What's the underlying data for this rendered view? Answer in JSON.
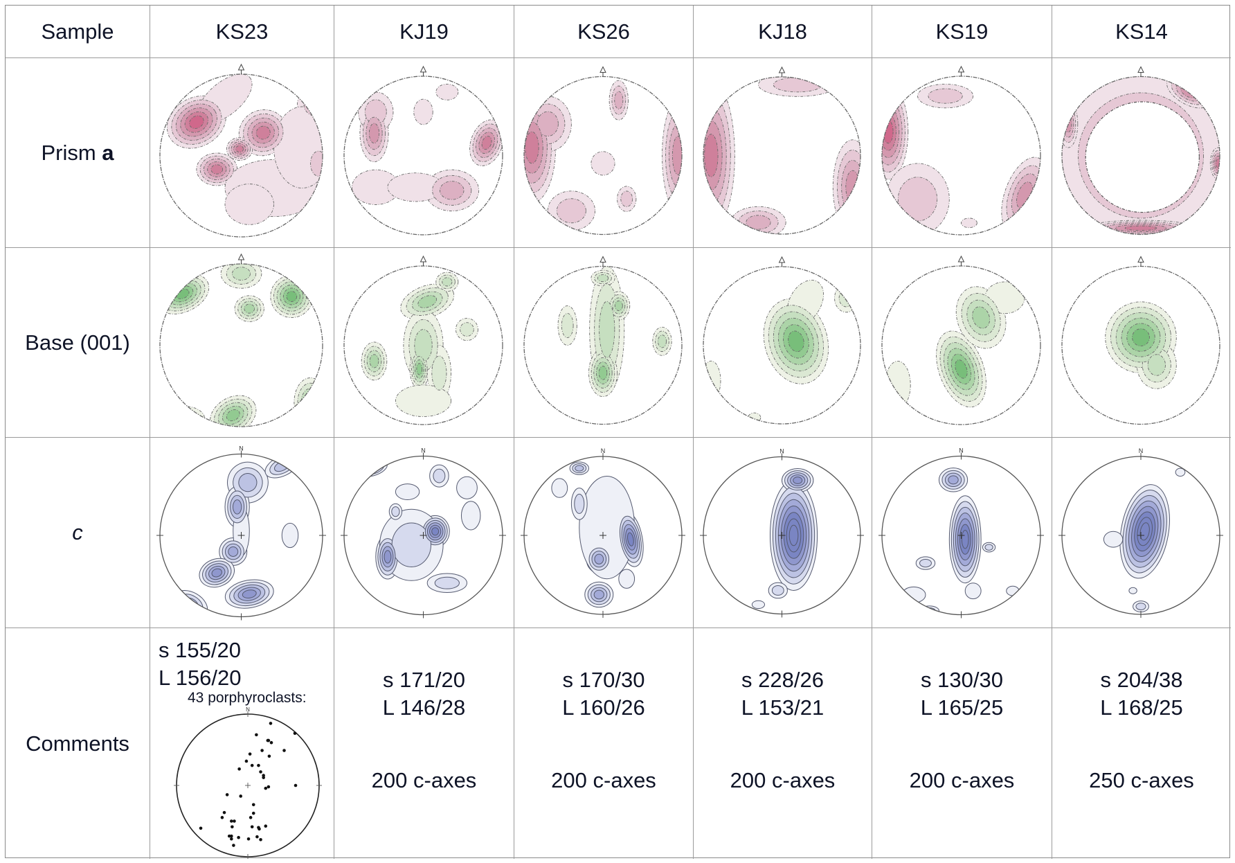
{
  "table": {
    "corner_label": "Sample",
    "samples": [
      "KS23",
      "KJ19",
      "KS26",
      "KJ18",
      "KS19",
      "KS14"
    ],
    "rows": [
      {
        "label_plain": "Prism ",
        "label_bold": "a",
        "kind": "prism",
        "north_marker": "triangle"
      },
      {
        "label_plain": "Base (001)",
        "kind": "base",
        "north_marker": "triangle"
      },
      {
        "label_italic": "c",
        "kind": "caxis",
        "north_marker": "N"
      },
      {
        "label_plain": "Comments",
        "kind": "comments"
      }
    ]
  },
  "colors": {
    "prism": [
      "#f0e1e8",
      "#e6c8d5",
      "#dcb0c2",
      "#d498ae",
      "#cf809b",
      "#d0688b"
    ],
    "base": [
      "#eef2e6",
      "#dbe8d3",
      "#c6dfc0",
      "#acd4a8",
      "#92ca91",
      "#78be7a"
    ],
    "caxis": [
      "#eef0f7",
      "#d6daee",
      "#bcc2e3",
      "#a3aad8",
      "#8f97cd",
      "#7a85c3"
    ],
    "line": "#555555",
    "text": "#0e1326"
  },
  "comments": [
    {
      "s": "s 155/20",
      "L": "L 156/20",
      "extra": "43 porphyroclasts:"
    },
    {
      "s": "s 171/20",
      "L": "L 146/28",
      "count": "200 c-axes"
    },
    {
      "s": "s 170/30",
      "L": "L 160/26",
      "count": "200 c-axes"
    },
    {
      "s": "s 228/26",
      "L": "L 153/21",
      "count": "200 c-axes"
    },
    {
      "s": "s 130/30",
      "L": "L 165/25",
      "count": "200 c-axes"
    },
    {
      "s": "s 204/38",
      "L": "L 168/25",
      "count": "250 c-axes"
    }
  ],
  "porphyroclasts": {
    "north_label": "N",
    "points": [
      [
        0.32,
        -0.87
      ],
      [
        0.66,
        -0.73
      ],
      [
        0.12,
        -0.71
      ],
      [
        0.28,
        -0.63
      ],
      [
        0.33,
        -0.6
      ],
      [
        0.29,
        -0.63
      ],
      [
        0.2,
        -0.49
      ],
      [
        0.51,
        -0.49
      ],
      [
        0.3,
        -0.41
      ],
      [
        0.03,
        -0.44
      ],
      [
        -0.02,
        -0.34
      ],
      [
        0.06,
        -0.28
      ],
      [
        0.15,
        -0.28
      ],
      [
        -0.12,
        -0.23
      ],
      [
        0.18,
        -0.19
      ],
      [
        0.22,
        -0.14
      ],
      [
        0.22,
        -0.11
      ],
      [
        0.67,
        0.0
      ],
      [
        0.29,
        0.02
      ],
      [
        0.25,
        0.04
      ],
      [
        -0.29,
        0.13
      ],
      [
        -0.1,
        0.15
      ],
      [
        0.08,
        0.27
      ],
      [
        0.08,
        0.39
      ],
      [
        -0.33,
        0.38
      ],
      [
        -0.36,
        0.45
      ],
      [
        0.04,
        0.45
      ],
      [
        -0.23,
        0.5
      ],
      [
        -0.19,
        0.5
      ],
      [
        -0.22,
        0.58
      ],
      [
        0.06,
        0.58
      ],
      [
        0.15,
        0.59
      ],
      [
        0.16,
        0.61
      ],
      [
        0.25,
        0.57
      ],
      [
        -0.66,
        0.6
      ],
      [
        -0.26,
        0.71
      ],
      [
        -0.23,
        0.71
      ],
      [
        -0.13,
        0.73
      ],
      [
        -0.23,
        0.75
      ],
      [
        0.01,
        0.75
      ],
      [
        0.13,
        0.72
      ],
      [
        0.18,
        0.76
      ],
      [
        -0.2,
        0.84
      ]
    ]
  },
  "fabrics": {
    "prism": [
      [
        [
          -0.55,
          -0.41,
          0.38,
          0.3,
          -30,
          6
        ],
        [
          0.27,
          -0.28,
          0.3,
          0.28,
          -20,
          5
        ],
        [
          -0.3,
          0.17,
          0.25,
          0.2,
          0,
          5
        ],
        [
          -0.02,
          -0.08,
          0.16,
          0.14,
          0,
          5
        ],
        [
          0.9,
          -0.6,
          0.22,
          0.18,
          30,
          2
        ],
        [
          0.95,
          0.1,
          0.16,
          0.25,
          0,
          2
        ],
        [
          0.4,
          0.4,
          0.6,
          0.35,
          0,
          1
        ],
        [
          0.1,
          0.6,
          0.3,
          0.25,
          0,
          1
        ],
        [
          -0.2,
          -0.7,
          0.4,
          0.2,
          -40,
          1
        ],
        [
          0.75,
          -0.1,
          0.35,
          0.5,
          0,
          1
        ]
      ],
      [
        [
          -0.62,
          -0.28,
          0.18,
          0.36,
          0,
          4
        ],
        [
          0.8,
          -0.16,
          0.2,
          0.3,
          20,
          5
        ],
        [
          0.36,
          0.44,
          0.34,
          0.26,
          0,
          3
        ],
        [
          -0.6,
          0.4,
          0.3,
          0.22,
          0,
          1
        ],
        [
          -0.1,
          0.4,
          0.35,
          0.18,
          0,
          1
        ],
        [
          0.0,
          -0.55,
          0.12,
          0.16,
          0,
          1
        ],
        [
          0.3,
          -0.8,
          0.14,
          0.1,
          0,
          1
        ],
        [
          -0.6,
          -0.55,
          0.22,
          0.25,
          0,
          2
        ]
      ],
      [
        [
          -0.9,
          -0.1,
          0.3,
          0.7,
          0,
          5
        ],
        [
          0.95,
          0.0,
          0.2,
          0.7,
          0,
          4
        ],
        [
          0.2,
          -0.7,
          0.12,
          0.25,
          0,
          3
        ],
        [
          -0.4,
          0.7,
          0.3,
          0.25,
          0,
          2
        ],
        [
          0.3,
          0.55,
          0.12,
          0.16,
          0,
          2
        ],
        [
          -0.7,
          -0.4,
          0.3,
          0.35,
          0,
          3
        ],
        [
          0.0,
          0.1,
          0.15,
          0.15,
          0,
          1
        ]
      ],
      [
        [
          -0.9,
          0.0,
          0.3,
          0.95,
          0,
          5
        ],
        [
          0.9,
          0.4,
          0.25,
          0.6,
          0,
          4
        ],
        [
          -0.3,
          0.85,
          0.35,
          0.2,
          0,
          3
        ],
        [
          0.2,
          -0.9,
          0.5,
          0.15,
          0,
          2
        ]
      ],
      [
        [
          -0.92,
          -0.3,
          0.25,
          0.6,
          0,
          6
        ],
        [
          0.8,
          0.5,
          0.25,
          0.5,
          20,
          4
        ],
        [
          -0.55,
          0.55,
          0.4,
          0.45,
          0,
          2
        ],
        [
          -0.2,
          -0.75,
          0.35,
          0.15,
          0,
          2
        ],
        [
          0.1,
          0.85,
          0.1,
          0.06,
          0,
          1
        ]
      ],
      [
        [
          0.0,
          0.0,
          1.1,
          1.1,
          0,
          3
        ],
        [
          0.98,
          0.1,
          0.1,
          0.2,
          0,
          5
        ],
        [
          -0.92,
          -0.4,
          0.12,
          0.3,
          0,
          4
        ],
        [
          0.0,
          0.92,
          0.7,
          0.1,
          0,
          5
        ],
        [
          0.6,
          -0.8,
          0.3,
          0.15,
          30,
          4
        ]
      ]
    ],
    "base": [
      [
        [
          -0.72,
          -0.63,
          0.34,
          0.22,
          -25,
          6
        ],
        [
          0.62,
          -0.6,
          0.26,
          0.26,
          0,
          6
        ],
        [
          0.1,
          -0.45,
          0.18,
          0.16,
          0,
          4
        ],
        [
          0.0,
          -0.88,
          0.25,
          0.18,
          0,
          3
        ],
        [
          -0.1,
          0.86,
          0.3,
          0.22,
          -30,
          5
        ],
        [
          0.85,
          0.7,
          0.2,
          0.3,
          0,
          4
        ],
        [
          -0.7,
          0.9,
          0.25,
          0.15,
          0,
          3
        ]
      ],
      [
        [
          0.05,
          -0.55,
          0.35,
          0.2,
          -20,
          4
        ],
        [
          0.0,
          0.0,
          0.25,
          0.45,
          0,
          3
        ],
        [
          -0.05,
          0.3,
          0.12,
          0.25,
          0,
          5
        ],
        [
          -0.62,
          0.2,
          0.16,
          0.24,
          0,
          4
        ],
        [
          0.55,
          -0.2,
          0.14,
          0.14,
          0,
          2
        ],
        [
          0.3,
          -0.8,
          0.14,
          0.12,
          0,
          3
        ],
        [
          0.2,
          0.35,
          0.15,
          0.35,
          0,
          2
        ],
        [
          0.0,
          0.7,
          0.35,
          0.2,
          0,
          1
        ]
      ],
      [
        [
          0.05,
          -0.2,
          0.22,
          0.8,
          0,
          3
        ],
        [
          0.0,
          0.35,
          0.18,
          0.3,
          0,
          5
        ],
        [
          0.2,
          -0.5,
          0.14,
          0.18,
          0,
          4
        ],
        [
          0.75,
          -0.05,
          0.12,
          0.18,
          0,
          3
        ],
        [
          -0.45,
          -0.25,
          0.12,
          0.25,
          0,
          2
        ],
        [
          0.0,
          -0.85,
          0.15,
          0.1,
          0,
          3
        ]
      ],
      [
        [
          0.18,
          -0.05,
          0.4,
          0.55,
          -15,
          6
        ],
        [
          0.3,
          -0.55,
          0.2,
          0.3,
          30,
          1
        ],
        [
          0.82,
          -0.6,
          0.15,
          0.18,
          0,
          2
        ],
        [
          -0.9,
          0.45,
          0.12,
          0.25,
          0,
          1
        ],
        [
          -0.35,
          0.92,
          0.08,
          0.06,
          0,
          1
        ]
      ],
      [
        [
          0.0,
          0.3,
          0.28,
          0.5,
          -20,
          6
        ],
        [
          0.25,
          -0.35,
          0.3,
          0.4,
          -20,
          4
        ],
        [
          -0.8,
          0.5,
          0.16,
          0.3,
          0,
          1
        ],
        [
          0.55,
          -0.6,
          0.25,
          0.2,
          0,
          1
        ]
      ],
      [
        [
          0.0,
          -0.1,
          0.45,
          0.45,
          -10,
          6
        ],
        [
          0.2,
          0.25,
          0.25,
          0.3,
          0,
          3
        ]
      ]
    ],
    "caxis": [
      [
        [
          0.08,
          -0.65,
          0.25,
          0.25,
          -30,
          3
        ],
        [
          0.5,
          -0.85,
          0.22,
          0.12,
          -25,
          3
        ],
        [
          -0.05,
          -0.35,
          0.15,
          0.25,
          0,
          4
        ],
        [
          -0.1,
          0.2,
          0.17,
          0.17,
          0,
          4
        ],
        [
          -0.3,
          0.46,
          0.22,
          0.17,
          -20,
          5
        ],
        [
          0.1,
          0.72,
          0.3,
          0.17,
          -10,
          5
        ],
        [
          -0.62,
          0.84,
          0.22,
          0.14,
          30,
          3
        ],
        [
          0.6,
          0.0,
          0.1,
          0.15,
          0,
          1
        ],
        [
          0.0,
          -0.05,
          0.1,
          0.3,
          0,
          1
        ]
      ],
      [
        [
          0.15,
          -0.05,
          0.18,
          0.2,
          0,
          6
        ],
        [
          -0.45,
          0.27,
          0.15,
          0.28,
          0,
          5
        ],
        [
          -0.15,
          0.12,
          0.4,
          0.45,
          0,
          2
        ],
        [
          -0.65,
          -0.85,
          0.2,
          0.1,
          -15,
          4
        ],
        [
          0.2,
          -0.75,
          0.12,
          0.14,
          0,
          2
        ],
        [
          0.55,
          -0.6,
          0.13,
          0.14,
          0,
          1
        ],
        [
          0.6,
          -0.25,
          0.12,
          0.18,
          0,
          1
        ],
        [
          -0.35,
          -0.3,
          0.08,
          0.1,
          0,
          2
        ],
        [
          0.3,
          0.6,
          0.25,
          0.12,
          0,
          2
        ],
        [
          -0.2,
          -0.55,
          0.15,
          0.1,
          0,
          1
        ]
      ],
      [
        [
          0.35,
          0.05,
          0.15,
          0.35,
          -10,
          6
        ],
        [
          -0.05,
          0.3,
          0.16,
          0.18,
          0,
          4
        ],
        [
          -0.05,
          0.75,
          0.18,
          0.16,
          0,
          4
        ],
        [
          0.05,
          -0.1,
          0.35,
          0.65,
          0,
          1
        ],
        [
          -0.3,
          -0.85,
          0.12,
          0.08,
          0,
          3
        ],
        [
          -0.3,
          -0.4,
          0.1,
          0.2,
          0,
          2
        ],
        [
          0.3,
          0.55,
          0.1,
          0.12,
          0,
          1
        ],
        [
          -0.55,
          -0.6,
          0.1,
          0.12,
          0,
          1
        ]
      ],
      [
        [
          0.15,
          0.0,
          0.3,
          0.7,
          0,
          8
        ],
        [
          0.2,
          -0.7,
          0.2,
          0.15,
          0,
          5
        ],
        [
          -0.05,
          0.7,
          0.12,
          0.1,
          0,
          2
        ],
        [
          -0.3,
          0.88,
          0.08,
          0.05,
          0,
          1
        ]
      ],
      [
        [
          0.05,
          0.05,
          0.2,
          0.55,
          0,
          7
        ],
        [
          -0.1,
          -0.7,
          0.18,
          0.15,
          0,
          4
        ],
        [
          -0.45,
          0.35,
          0.12,
          0.08,
          0,
          2
        ],
        [
          0.35,
          0.15,
          0.08,
          0.06,
          0,
          2
        ],
        [
          -0.6,
          0.75,
          0.15,
          0.1,
          0,
          1
        ],
        [
          0.65,
          0.7,
          0.08,
          0.06,
          0,
          1
        ],
        [
          -0.4,
          0.95,
          0.12,
          0.06,
          0,
          2
        ],
        [
          0.15,
          0.7,
          0.1,
          0.1,
          0,
          1
        ]
      ],
      [
        [
          0.05,
          -0.05,
          0.3,
          0.6,
          10,
          8
        ],
        [
          -0.35,
          0.05,
          0.12,
          0.1,
          0,
          1
        ],
        [
          0.0,
          0.9,
          0.1,
          0.07,
          0,
          2
        ],
        [
          -0.1,
          0.7,
          0.05,
          0.04,
          0,
          1
        ],
        [
          0.5,
          -0.8,
          0.06,
          0.05,
          0,
          1
        ]
      ]
    ]
  }
}
